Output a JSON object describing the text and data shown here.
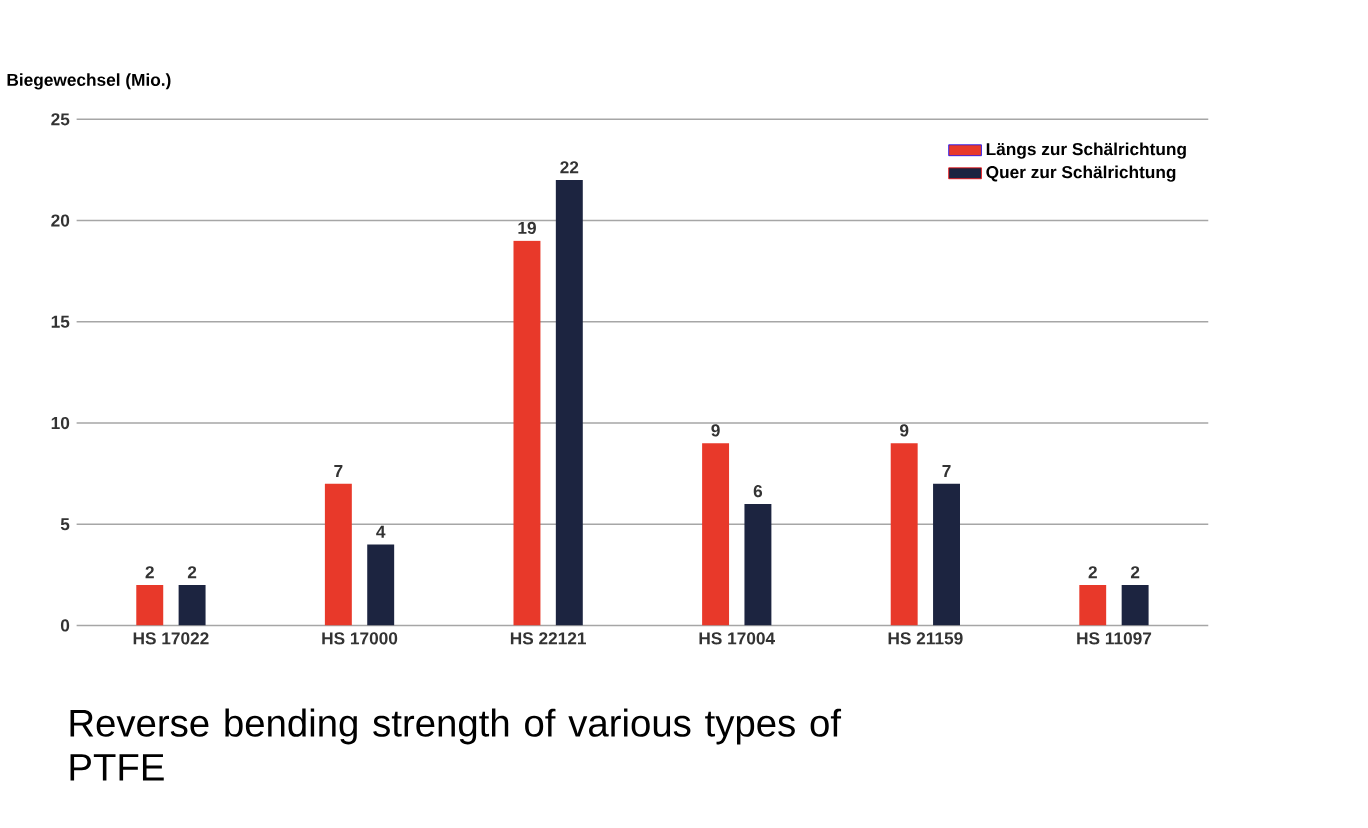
{
  "chart_data": {
    "type": "bar",
    "ylabel": "Biegewechsel (Mio.)",
    "categories": [
      "HS 17022",
      "HS 17000",
      "HS 22121",
      "HS 17004",
      "HS 21159",
      "HS 11097"
    ],
    "series": [
      {
        "name": "Längs zur Schälrichtung",
        "color": "#e8392a",
        "values": [
          2,
          7,
          19,
          9,
          9,
          2
        ]
      },
      {
        "name": "Quer zur Schälrichtung",
        "color": "#1c2440",
        "values": [
          2,
          4,
          22,
          6,
          7,
          2
        ]
      }
    ],
    "ylim": [
      0,
      25
    ],
    "yticks": [
      0,
      5,
      10,
      15,
      20,
      25
    ],
    "grid": "y",
    "legend": "top right",
    "data_labels": true,
    "annotations": [
      "Reverse bending strength of various types of PTFE"
    ]
  }
}
